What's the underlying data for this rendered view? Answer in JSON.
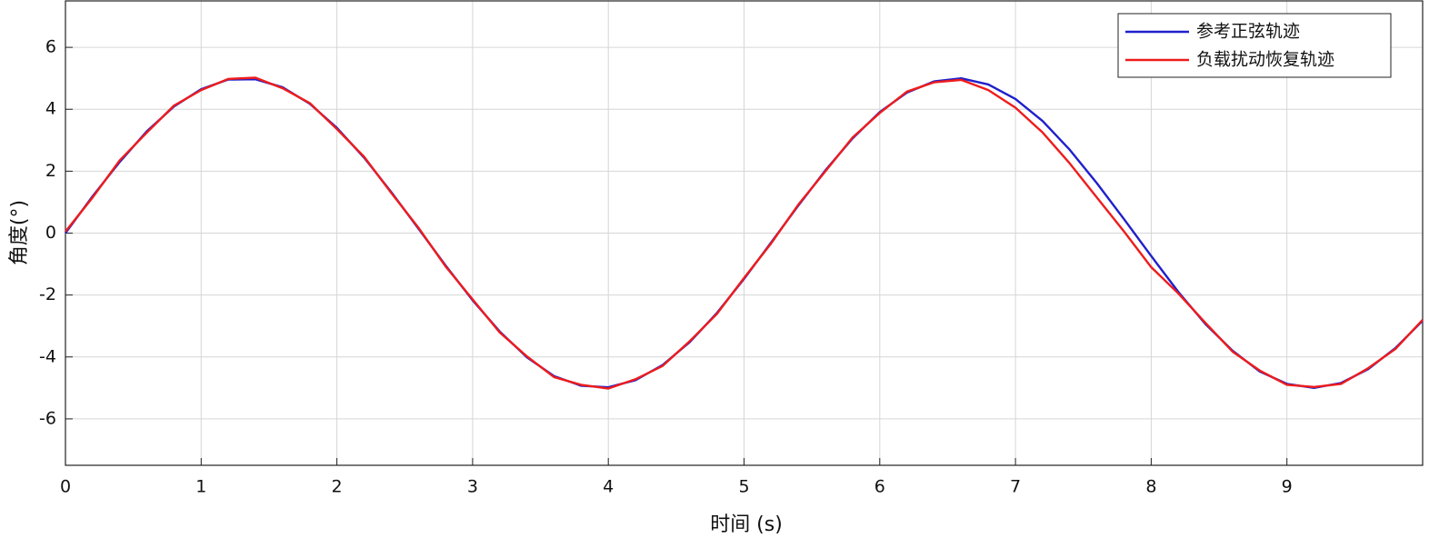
{
  "chart_data": {
    "type": "line",
    "x_label": "时间 (s)",
    "y_label": "角度(°)",
    "x": [
      0,
      0.2,
      0.4,
      0.6,
      0.8,
      1,
      1.2,
      1.4,
      1.6,
      1.8,
      2,
      2.2,
      2.4,
      2.6,
      2.8,
      3,
      3.2,
      3.4,
      3.6,
      3.8,
      4,
      4.2,
      4.4,
      4.6,
      4.8,
      5,
      5.2,
      5.4,
      5.6,
      5.8,
      6,
      6.2,
      6.4,
      6.6,
      6.8,
      7,
      7.2,
      7.4,
      7.6,
      7.8,
      8,
      8.2,
      8.4,
      8.6,
      8.8,
      9,
      9.2,
      9.4,
      9.6,
      9.8,
      10
    ],
    "series": [
      {
        "name": "参考正弦轨迹",
        "color": "#1f1fcc",
        "values": [
          0,
          1.19,
          2.3,
          3.29,
          4.09,
          4.65,
          4.96,
          4.97,
          4.71,
          4.18,
          3.4,
          2.44,
          1.33,
          0.15,
          -1.04,
          -2.17,
          -3.18,
          -4.01,
          -4.62,
          -4.93,
          -4.98,
          -4.75,
          -4.26,
          -3.52,
          -2.58,
          -1.48,
          -0.3,
          0.89,
          2.03,
          3.06,
          3.91,
          4.54,
          4.9,
          5,
          4.8,
          4.33,
          3.62,
          2.69,
          1.61,
          0.45,
          -0.74,
          -1.9,
          -2.94,
          -3.8,
          -4.47,
          -4.87,
          -5,
          -4.84,
          -4.39,
          -3.71,
          -2.83
        ]
      },
      {
        "name": "负载扰动恢复轨迹",
        "color": "#ee1c1c",
        "values": [
          0.05,
          1.15,
          2.35,
          3.25,
          4.12,
          4.62,
          4.98,
          5.02,
          4.68,
          4.2,
          3.36,
          2.47,
          1.3,
          0.18,
          -1.07,
          -2.14,
          -3.21,
          -3.98,
          -4.65,
          -4.9,
          -5.02,
          -4.72,
          -4.29,
          -3.49,
          -2.61,
          -1.45,
          -0.33,
          0.92,
          2,
          3.09,
          3.88,
          4.57,
          4.87,
          4.95,
          4.62,
          4.05,
          3.25,
          2.25,
          1.15,
          0.05,
          -1.1,
          -1.95,
          -2.9,
          -3.83,
          -4.44,
          -4.9,
          -4.97,
          -4.87,
          -4.36,
          -3.74,
          -2.8
        ]
      }
    ],
    "xlim": [
      0,
      10
    ],
    "ylim": [
      -7.5,
      7.5
    ],
    "xticks": [
      0,
      1,
      2,
      3,
      4,
      5,
      6,
      7,
      8,
      9
    ],
    "yticks": [
      -6,
      -4,
      -2,
      0,
      2,
      4,
      6
    ],
    "grid": true,
    "legend": "upper right"
  }
}
